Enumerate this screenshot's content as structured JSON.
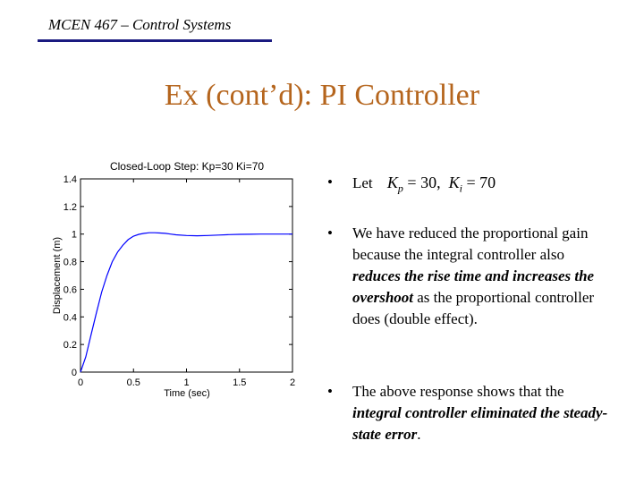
{
  "header": {
    "course": "MCEN 467 – Control Systems",
    "title": "Ex (cont’d): PI Controller"
  },
  "bullets": {
    "let_label": "Let",
    "formula_kp_sym": "K",
    "formula_kp_sub": "p",
    "formula_kp_val": " = 30,",
    "formula_ki_sym": "K",
    "formula_ki_sub": "i",
    "formula_ki_val": " = 70",
    "b2_part1": "We have reduced the proportional gain because the integral controller also ",
    "b2_emph": "reduces the rise time and increases the overshoot",
    "b2_part2": " as the proportional controller does (double effect).",
    "b3_part1": "The above response shows that the ",
    "b3_emph": "integral controller eliminated the steady-state error",
    "b3_part2": "."
  },
  "chart_data": {
    "type": "line",
    "title": "Closed-Loop Step: Kp=30 Ki=70",
    "xlabel": "Time (sec)",
    "ylabel": "Displacement (m)",
    "xlim": [
      0,
      2
    ],
    "ylim": [
      0,
      1.4
    ],
    "xticks": [
      "0",
      "0.5",
      "1",
      "1.5",
      "2"
    ],
    "yticks": [
      "0",
      "0.2",
      "0.4",
      "0.6",
      "0.8",
      "1",
      "1.2",
      "1.4"
    ],
    "grid": false,
    "series": [
      {
        "x": [
          0,
          0.05,
          0.1,
          0.15,
          0.2,
          0.25,
          0.3,
          0.35,
          0.4,
          0.45,
          0.5,
          0.55,
          0.6,
          0.65,
          0.7,
          0.75,
          0.8,
          0.85,
          0.9,
          1.0,
          1.1,
          1.2,
          1.3,
          1.4,
          1.5,
          1.6,
          1.7,
          1.8,
          1.9,
          2.0
        ],
        "y": [
          0,
          0.11,
          0.27,
          0.43,
          0.58,
          0.7,
          0.8,
          0.87,
          0.92,
          0.96,
          0.985,
          0.998,
          1.005,
          1.01,
          1.01,
          1.008,
          1.005,
          1.0,
          0.995,
          0.99,
          0.988,
          0.99,
          0.993,
          0.996,
          0.998,
          0.999,
          1.0,
          1.0,
          1.0,
          1.0
        ]
      }
    ]
  },
  "colors": {
    "title": "#b5651d",
    "rule": "#1a1a80",
    "curve": "#0000ff"
  }
}
